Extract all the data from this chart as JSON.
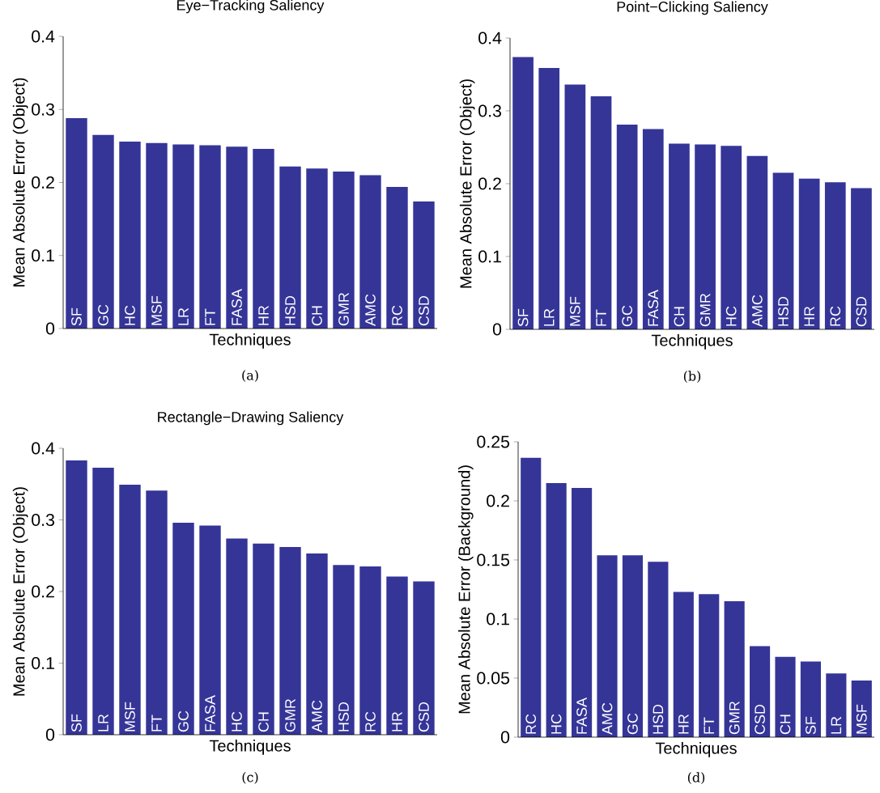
{
  "chart_data": [
    {
      "type": "bar",
      "title": "Eye−Tracking Saliency",
      "xlabel": "Techniques",
      "ylabel": "Mean Absolute Error (Object)",
      "categories": [
        "SF",
        "GC",
        "HC",
        "MSF",
        "LR",
        "FT",
        "FASA",
        "HR",
        "HSD",
        "CH",
        "GMR",
        "AMC",
        "RC",
        "CSD"
      ],
      "values": [
        0.288,
        0.265,
        0.256,
        0.254,
        0.252,
        0.251,
        0.249,
        0.246,
        0.222,
        0.219,
        0.215,
        0.21,
        0.194,
        0.174
      ],
      "color": "#353598",
      "ylim": [
        0,
        0.4
      ],
      "yticks": [
        0,
        0.1,
        0.2,
        0.3,
        0.4
      ],
      "annotations": [
        "(a)"
      ]
    },
    {
      "type": "bar",
      "title": "Point−Clicking Saliency",
      "xlabel": "Techniques",
      "ylabel": "Mean Absolute Error (Object)",
      "categories": [
        "SF",
        "LR",
        "MSF",
        "FT",
        "GC",
        "FASA",
        "CH",
        "GMR",
        "HC",
        "AMC",
        "HSD",
        "HR",
        "RC",
        "CSD"
      ],
      "values": [
        0.374,
        0.359,
        0.336,
        0.32,
        0.281,
        0.275,
        0.255,
        0.254,
        0.252,
        0.238,
        0.215,
        0.207,
        0.202,
        0.194
      ],
      "color": "#353598",
      "ylim": [
        0,
        0.4
      ],
      "yticks": [
        0,
        0.1,
        0.2,
        0.3,
        0.4
      ],
      "annotations": [
        "(b)"
      ]
    },
    {
      "type": "bar",
      "title": "Rectangle−Drawing Saliency",
      "xlabel": "Techniques",
      "ylabel": "Mean Absolute Error (Object)",
      "categories": [
        "SF",
        "LR",
        "MSF",
        "FT",
        "GC",
        "FASA",
        "HC",
        "CH",
        "GMR",
        "AMC",
        "HSD",
        "RC",
        "HR",
        "CSD"
      ],
      "values": [
        0.383,
        0.373,
        0.349,
        0.341,
        0.296,
        0.292,
        0.274,
        0.267,
        0.262,
        0.253,
        0.237,
        0.235,
        0.221,
        0.214
      ],
      "color": "#353598",
      "ylim": [
        0,
        0.4
      ],
      "yticks": [
        0,
        0.1,
        0.2,
        0.3,
        0.4
      ],
      "annotations": [
        "(c)"
      ]
    },
    {
      "type": "bar",
      "xlabel": "Techniques",
      "ylabel": "Mean Absolute Error (Background)",
      "categories": [
        "RC",
        "HC",
        "FASA",
        "AMC",
        "GC",
        "HSD",
        "HR",
        "FT",
        "GMR",
        "CSD",
        "CH",
        "SF",
        "LR",
        "MSF"
      ],
      "values": [
        0.2365,
        0.215,
        0.211,
        0.154,
        0.154,
        0.1485,
        0.123,
        0.121,
        0.115,
        0.077,
        0.068,
        0.064,
        0.054,
        0.048
      ],
      "color": "#353598",
      "ylim": [
        0,
        0.25
      ],
      "yticks": [
        0,
        0.05,
        0.1,
        0.15,
        0.2,
        0.25
      ],
      "annotations": [
        "(d)"
      ]
    }
  ]
}
